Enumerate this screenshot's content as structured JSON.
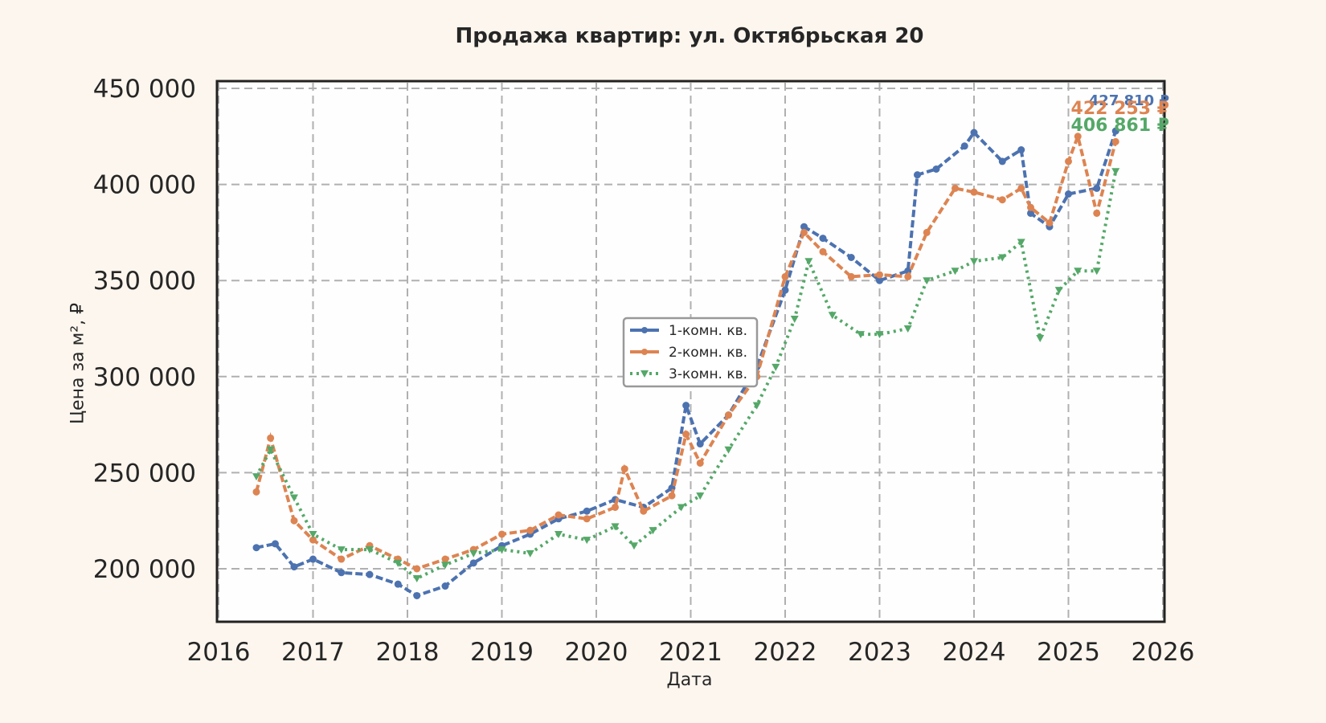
{
  "chart_data": {
    "type": "line",
    "title": "Продажа квартир: ул. Октябрьская 20",
    "xlabel": "Дата",
    "ylabel": "Цена за м², ₽",
    "xlim": [
      2016,
      2026
    ],
    "ylim": [
      173000,
      452000
    ],
    "xticks": [
      "2016",
      "2017",
      "2018",
      "2019",
      "2020",
      "2021",
      "2022",
      "2023",
      "2024",
      "2025",
      "2026"
    ],
    "yticks": [
      "200 000",
      "250 000",
      "300 000",
      "350 000",
      "400 000",
      "450 000"
    ],
    "ytick_values": [
      200000,
      250000,
      300000,
      350000,
      400000,
      450000
    ],
    "grid": true,
    "legend_position": "center",
    "series": [
      {
        "name": "1-комн. кв.",
        "color": "#4c72b0",
        "style": "dashed",
        "marker": "pentagon",
        "x": [
          2016.4,
          2016.6,
          2016.8,
          2017.0,
          2017.3,
          2017.6,
          2017.9,
          2018.1,
          2018.4,
          2018.7,
          2019.0,
          2019.3,
          2019.6,
          2019.9,
          2020.2,
          2020.5,
          2020.8,
          2020.95,
          2021.1,
          2021.4,
          2021.7,
          2022.0,
          2022.2,
          2022.4,
          2022.7,
          2023.0,
          2023.3,
          2023.4,
          2023.6,
          2023.9,
          2024.0,
          2024.3,
          2024.5,
          2024.6,
          2024.8,
          2025.0,
          2025.3,
          2025.5
        ],
        "y": [
          211000,
          213000,
          201000,
          205000,
          198000,
          197000,
          192000,
          186000,
          191000,
          203000,
          212000,
          218000,
          226000,
          230000,
          236000,
          232000,
          242000,
          285000,
          265000,
          280000,
          305000,
          345000,
          378000,
          372000,
          362000,
          350000,
          355000,
          405000,
          408000,
          420000,
          427000,
          412000,
          418000,
          385000,
          378000,
          395000,
          398000,
          427810
        ]
      },
      {
        "name": "2-комн. кв.",
        "color": "#dd8452",
        "style": "dashed",
        "marker": "circle",
        "x": [
          2016.4,
          2016.55,
          2016.8,
          2017.0,
          2017.3,
          2017.6,
          2017.9,
          2018.1,
          2018.4,
          2018.7,
          2019.0,
          2019.3,
          2019.6,
          2019.9,
          2020.2,
          2020.3,
          2020.5,
          2020.8,
          2020.95,
          2021.1,
          2021.4,
          2021.7,
          2022.0,
          2022.2,
          2022.4,
          2022.7,
          2023.0,
          2023.3,
          2023.5,
          2023.8,
          2024.0,
          2024.3,
          2024.5,
          2024.6,
          2024.8,
          2025.0,
          2025.1,
          2025.3,
          2025.5
        ],
        "y": [
          240000,
          268000,
          225000,
          215000,
          205000,
          212000,
          205000,
          200000,
          205000,
          210000,
          218000,
          220000,
          228000,
          226000,
          232000,
          252000,
          230000,
          238000,
          270000,
          255000,
          280000,
          300000,
          352000,
          375000,
          365000,
          352000,
          353000,
          352000,
          375000,
          398000,
          396000,
          392000,
          398000,
          388000,
          380000,
          412000,
          425000,
          385000,
          422253
        ]
      },
      {
        "name": "3-комн. кв.",
        "color": "#55a868",
        "style": "dotted",
        "marker": "triangle-down",
        "x": [
          2016.4,
          2016.55,
          2016.8,
          2017.0,
          2017.3,
          2017.6,
          2017.9,
          2018.1,
          2018.4,
          2018.7,
          2019.0,
          2019.3,
          2019.6,
          2019.9,
          2020.2,
          2020.4,
          2020.6,
          2020.9,
          2021.1,
          2021.4,
          2021.7,
          2021.9,
          2022.1,
          2022.25,
          2022.5,
          2022.8,
          2023.0,
          2023.3,
          2023.5,
          2023.8,
          2024.0,
          2024.3,
          2024.5,
          2024.7,
          2024.9,
          2025.1,
          2025.3,
          2025.5
        ],
        "y": [
          248000,
          262000,
          237000,
          218000,
          210000,
          210000,
          203000,
          195000,
          202000,
          208000,
          210000,
          208000,
          218000,
          215000,
          222000,
          212000,
          220000,
          232000,
          238000,
          262000,
          285000,
          305000,
          330000,
          360000,
          332000,
          322000,
          322000,
          325000,
          350000,
          355000,
          360000,
          362000,
          370000,
          320000,
          345000,
          355000,
          355000,
          406861
        ]
      }
    ],
    "annotations": [
      {
        "text": "427 810 ₽",
        "color": "#4c72b0"
      },
      {
        "text": "422 253 ₽",
        "color": "#dd8452"
      },
      {
        "text": "406 861 ₽",
        "color": "#55a868"
      }
    ]
  },
  "labels": {
    "title": "Продажа квартир: ул. Октябрьская 20",
    "xlabel": "Дата",
    "ylabel": "Цена за м², ₽",
    "legend": [
      "1-комн. кв.",
      "2-комн. кв.",
      "3-комн. кв."
    ]
  }
}
